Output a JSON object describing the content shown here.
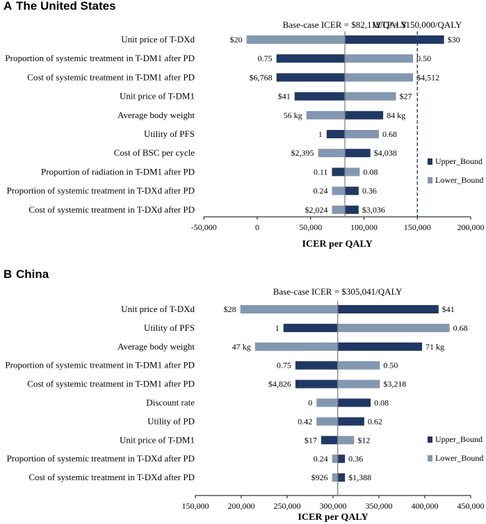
{
  "colors": {
    "upper": "#203864",
    "lower": "#8497B0",
    "axis": "#808080",
    "wtp": "#2F4B8A"
  },
  "chart_data": [
    {
      "type": "bar",
      "orientation": "horizontal-tornado",
      "panel_letter": "A",
      "title": "The United States",
      "xlabel": "ICER per QALY",
      "xlim": [
        -50000,
        200000
      ],
      "ticks": [
        -50000,
        0,
        50000,
        100000,
        150000,
        200000
      ],
      "tick_labels": [
        "-50,000",
        "0",
        "50,000",
        "100,000",
        "150,000",
        "200,000"
      ],
      "base_value": 82112,
      "base_label": "Base-case ICER = $82,112/QALY",
      "wtp_value": 150000,
      "wtp_label": "WTP = $150,000/QALY",
      "legend": [
        "Upper_Bound",
        "Lower_Bound"
      ],
      "parameters": [
        {
          "name": "Unit price of T-DXd",
          "upper_icer": 175000,
          "lower_icer": -10000,
          "upper_label": "$30",
          "lower_label": "$20"
        },
        {
          "name": "Proportion of systemic treatment in T-DM1 after PD",
          "upper_icer": 18000,
          "lower_icer": 146000,
          "upper_label": "0.75",
          "lower_label": "0.50"
        },
        {
          "name": "Cost of systemic treatment in T-DM1 after PD",
          "upper_icer": 18000,
          "lower_icer": 146000,
          "upper_label": "$6,768",
          "lower_label": "$4,512"
        },
        {
          "name": "Unit price of T-DM1",
          "upper_icer": 35000,
          "lower_icer": 130000,
          "upper_label": "$41",
          "lower_label": "$27"
        },
        {
          "name": "Average body weight",
          "upper_icer": 118000,
          "lower_icer": 46000,
          "upper_label": "84 kg",
          "lower_label": "56 kg"
        },
        {
          "name": "Utility of PFS",
          "upper_icer": 65000,
          "lower_icer": 114000,
          "upper_label": "1",
          "lower_label": "0.68"
        },
        {
          "name": "Cost of BSC per cycle",
          "upper_icer": 106000,
          "lower_icer": 57000,
          "upper_label": "$4,038",
          "lower_label": "$2,395"
        },
        {
          "name": "Proportion of radiation in T-DM1 after PD",
          "upper_icer": 70000,
          "lower_icer": 96000,
          "upper_label": "0.11",
          "lower_label": "0.08"
        },
        {
          "name": "Proportion of systemic treatment in T-DXd after PD",
          "upper_icer": 95000,
          "lower_icer": 70000,
          "upper_label": "0.36",
          "lower_label": "0.24"
        },
        {
          "name": "Cost of systemic treatment in T-DXd after PD",
          "upper_icer": 95000,
          "lower_icer": 70000,
          "upper_label": "$3,036",
          "lower_label": "$2,024"
        }
      ]
    },
    {
      "type": "bar",
      "orientation": "horizontal-tornado",
      "panel_letter": "B",
      "title": "China",
      "xlabel": "ICER per QALY",
      "xlim": [
        150000,
        450000
      ],
      "ticks": [
        150000,
        200000,
        250000,
        300000,
        350000,
        400000,
        450000
      ],
      "tick_labels": [
        "150,000",
        "200,000",
        "250,000",
        "300,000",
        "350,000",
        "400,000",
        "450,000"
      ],
      "base_value": 305041,
      "base_label": "Base-case ICER = $305,041/QALY",
      "legend": [
        "Upper_Bound",
        "Lower_Bound"
      ],
      "parameters": [
        {
          "name": "Unit price of T-DXd",
          "upper_icer": 415000,
          "lower_icer": 199000,
          "upper_label": "$41",
          "lower_label": "$28"
        },
        {
          "name": "Utility of PFS",
          "upper_icer": 246000,
          "lower_icer": 427000,
          "upper_label": "1",
          "lower_label": "0.68"
        },
        {
          "name": "Average body weight",
          "upper_icer": 397000,
          "lower_icer": 215000,
          "upper_label": "71 kg",
          "lower_label": "47 kg"
        },
        {
          "name": "Proportion of systemic treatment in T-DM1 after PD",
          "upper_icer": 259000,
          "lower_icer": 351000,
          "upper_label": "0.75",
          "lower_label": "0.50"
        },
        {
          "name": "Cost of systemic treatment in T-DM1 after PD",
          "upper_icer": 259000,
          "lower_icer": 351000,
          "upper_label": "$4,826",
          "lower_label": "$3,218"
        },
        {
          "name": "Discount rate",
          "upper_icer": 341000,
          "lower_icer": 282000,
          "upper_label": "0.08",
          "lower_label": "0"
        },
        {
          "name": "Utility of PD",
          "upper_icer": 334000,
          "lower_icer": 282000,
          "upper_label": "0.62",
          "lower_label": "0.42"
        },
        {
          "name": "Unit price of T-DM1",
          "upper_icer": 287000,
          "lower_icer": 323000,
          "upper_label": "$17",
          "lower_label": "$12"
        },
        {
          "name": "Proportion of systemic treatment in T-DXd after PD",
          "upper_icer": 313000,
          "lower_icer": 299000,
          "upper_label": "0.36",
          "lower_label": "0.24"
        },
        {
          "name": "Cost of systemic treatment in T-DXd after PD",
          "upper_icer": 313000,
          "lower_icer": 299000,
          "upper_label": "$1,388",
          "lower_label": "$926"
        }
      ]
    }
  ]
}
